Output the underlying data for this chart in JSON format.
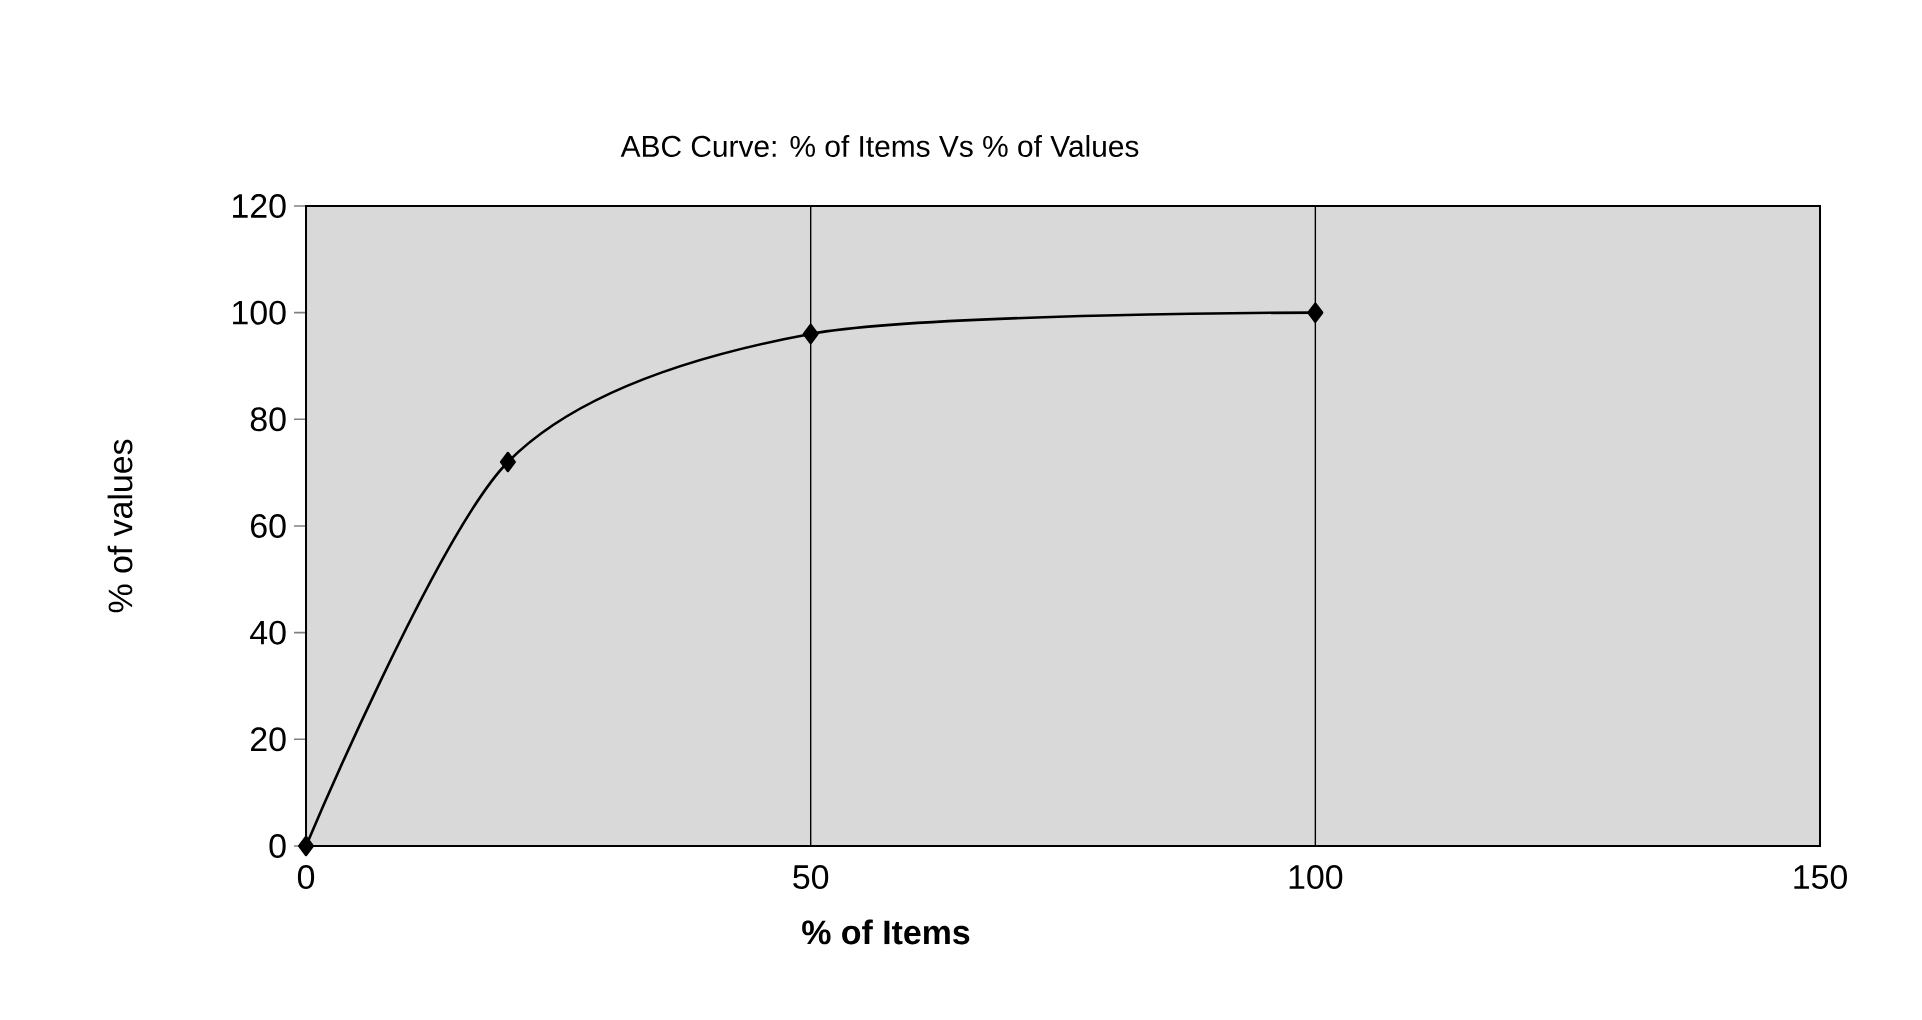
{
  "chart_data": {
    "type": "line",
    "title": "ABC Curve: % of Items Vs % of Values",
    "xlabel": "% of Items",
    "ylabel": "% of values",
    "series": [
      {
        "color": "#000000",
        "x": [
          0,
          20,
          50,
          100
        ],
        "values": [
          0,
          72,
          96,
          100
        ]
      }
    ],
    "xlim": [
      0,
      150
    ],
    "xticks": [
      0,
      50,
      100,
      150
    ],
    "ylim": [
      0,
      120
    ],
    "yticks": [
      0,
      20,
      40,
      60,
      80,
      100,
      120
    ],
    "grid": "x",
    "marker": "diamond",
    "line_style": "solid"
  }
}
